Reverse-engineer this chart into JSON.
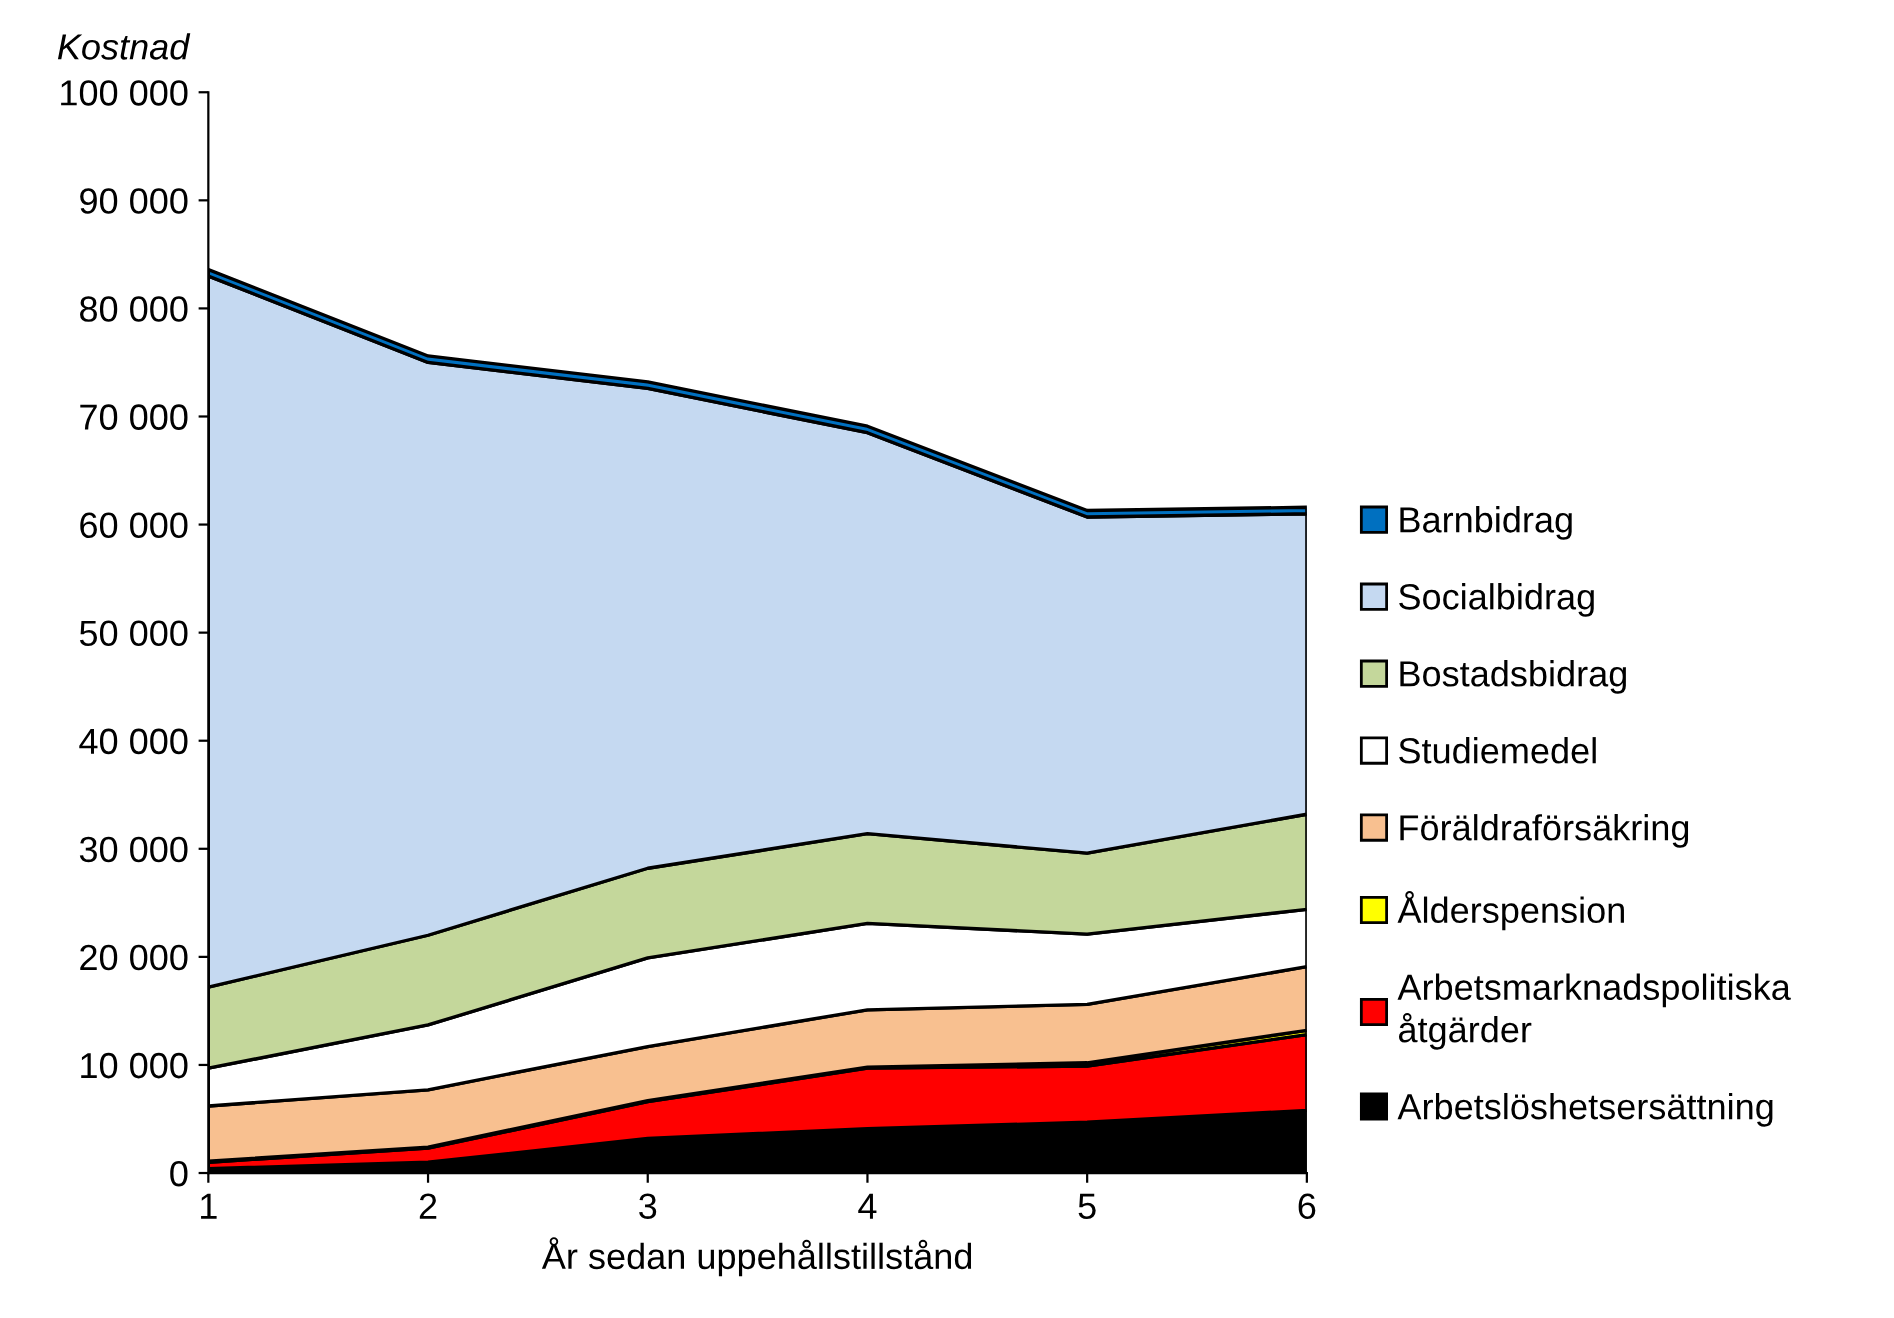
{
  "chart_data": {
    "type": "area",
    "stacked": true,
    "ylabel": "Kostnad",
    "xlabel": "År sedan uppehållstillstånd",
    "x": [
      1,
      2,
      3,
      4,
      5,
      6
    ],
    "xlim": [
      1,
      6
    ],
    "xticks": [
      1,
      2,
      3,
      4,
      5,
      6
    ],
    "ylim": [
      0,
      100000
    ],
    "yticks": [
      {
        "value": 0,
        "label": "0"
      },
      {
        "value": 10000,
        "label": "10 000"
      },
      {
        "value": 20000,
        "label": "20 000"
      },
      {
        "value": 30000,
        "label": "30 000"
      },
      {
        "value": 40000,
        "label": "40 000"
      },
      {
        "value": 50000,
        "label": "50 000"
      },
      {
        "value": 60000,
        "label": "60 000"
      },
      {
        "value": 70000,
        "label": "70 000"
      },
      {
        "value": 80000,
        "label": "80 000"
      },
      {
        "value": 90000,
        "label": "90 000"
      },
      {
        "value": 100000,
        "label": "100 000"
      }
    ],
    "grid": false,
    "legend": "right",
    "series": [
      {
        "name": "Arbetslöshetsersättning",
        "color": "#000000",
        "values": [
          400,
          1000,
          3200,
          4100,
          4700,
          5800
        ]
      },
      {
        "name": "Arbetsmarknadspolitiska\nåtgärder",
        "color": "#ff0000",
        "values": [
          600,
          1300,
          3400,
          5600,
          5200,
          7000
        ]
      },
      {
        "name": "Ålderspension",
        "color": "#ffff00",
        "values": [
          100,
          100,
          100,
          100,
          300,
          400
        ]
      },
      {
        "name": "Föräldraförsäkring",
        "color": "#f8c090",
        "values": [
          5100,
          5300,
          5000,
          5300,
          5400,
          5900
        ]
      },
      {
        "name": "Studiemedel",
        "color": "#ffffff",
        "values": [
          3500,
          6000,
          8200,
          8000,
          6500,
          5300
        ]
      },
      {
        "name": "Bostadsbidrag",
        "color": "#c4d79b",
        "values": [
          7500,
          8300,
          8300,
          8300,
          7500,
          8800
        ]
      },
      {
        "name": "Socialbidrag",
        "color": "#c5d9f1",
        "values": [
          65800,
          53000,
          44400,
          37100,
          31100,
          27800
        ]
      },
      {
        "name": "Barnbidrag",
        "color": "#0070c0",
        "values": [
          600,
          600,
          600,
          600,
          600,
          600
        ]
      }
    ]
  }
}
